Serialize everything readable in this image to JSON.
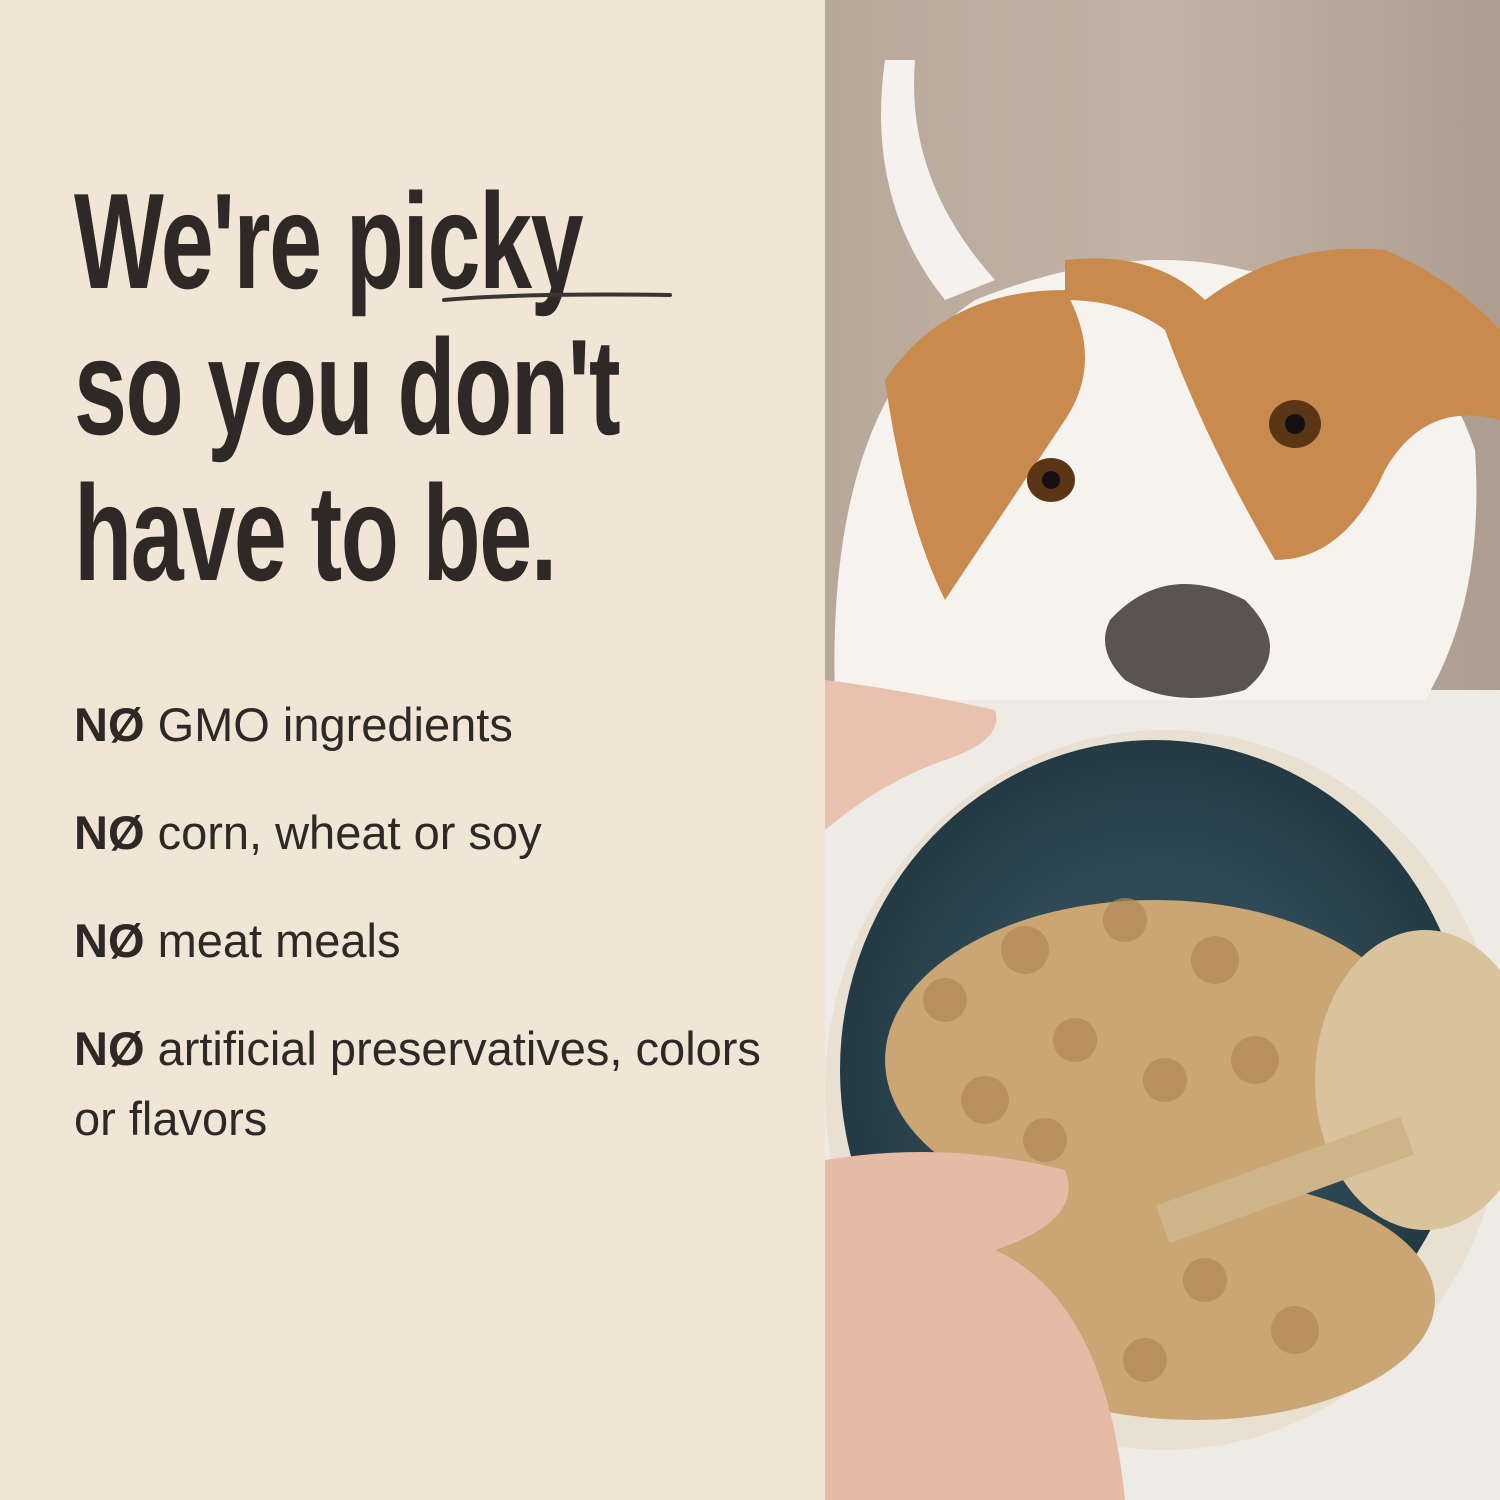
{
  "headline": {
    "line1_prefix": "We're ",
    "line1_emphasis": "picky",
    "line2": "so you don't",
    "line3": "have to be."
  },
  "claims": [
    {
      "prefix": "NØ",
      "text": "GMO ingredients"
    },
    {
      "prefix": "NØ",
      "text": "corn, wheat or soy"
    },
    {
      "prefix": "NØ",
      "text": "meat meals"
    },
    {
      "prefix": "NØ",
      "text": "artificial preservatives, colors or flavors"
    }
  ],
  "colors": {
    "background": "#f1e6d6",
    "text": "#2e2826",
    "bowl": "#2f4a55"
  },
  "photo": {
    "subject": "dog-looking-at-food-bowl-image"
  }
}
